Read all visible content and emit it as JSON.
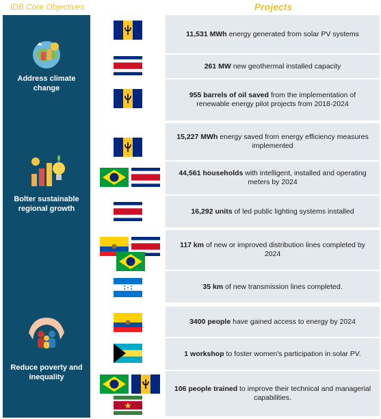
{
  "headers": {
    "left": "IDB Core Objectives",
    "right": "Projects"
  },
  "objectives": [
    {
      "label_line1": "Address climate",
      "label_line2": "change",
      "icon": "climate-icon"
    },
    {
      "label_line1": "Bolter sustainable",
      "label_line2": "regional growth",
      "icon": "growth-icon"
    },
    {
      "label_line1": "Reduce poverty and",
      "label_line2": "inequality",
      "icon": "community-icon"
    }
  ],
  "rows": [
    {
      "bold": "11,531 MWh",
      "rest": " energy generated from solar PV systems",
      "flags": [
        "barbados-flag"
      ]
    },
    {
      "bold": "261 MW",
      "rest": " new geothermal installed capacity",
      "flags": [
        "costa-rica-flag"
      ]
    },
    {
      "bold": "955 barrels of oil saved",
      "rest": " from the implementation of renewable energy pilot projects from 2018-2024",
      "flags": [
        "barbados-flag"
      ]
    },
    {
      "bold": "15,227 MWh",
      "rest": " energy saved from energy efficiency measures implemented",
      "flags": [
        "barbados-flag"
      ]
    },
    {
      "bold": "44,561 households",
      "rest": " with intelligent, installed and operating meters by 2024",
      "flags": [
        "brazil-flag",
        "costa-rica-flag"
      ]
    },
    {
      "bold": "16,292 units",
      "rest": " of led public lighting systems installed",
      "flags": [
        "costa-rica-flag"
      ]
    },
    {
      "bold": "117 km",
      "rest": " of new or improved distribution lines completed by 2024",
      "flags": [
        "ecuador-flag",
        "costa-rica-flag",
        "brazil-flag"
      ]
    },
    {
      "bold": "35 km",
      "rest": " of new transmission lines completed.",
      "flags": [
        "honduras-flag"
      ]
    },
    {
      "bold": "3400 people",
      "rest": " have gained access to energy by 2024",
      "flags": [
        "ecuador-flag"
      ]
    },
    {
      "bold": "1 workshop",
      "rest": " to foster women's participation in solar PV.",
      "flags": [
        "bahamas-flag"
      ]
    },
    {
      "bold": "106 people trained",
      "rest": " to improve their technical and managerial capabilities.",
      "flags": [
        "brazil-flag",
        "barbados-flag",
        "suriname-flag"
      ]
    }
  ],
  "colors": {
    "header": "#e8c23a",
    "objective_bg": "#0f4d6d",
    "row_bg": "#e3e9ed"
  }
}
